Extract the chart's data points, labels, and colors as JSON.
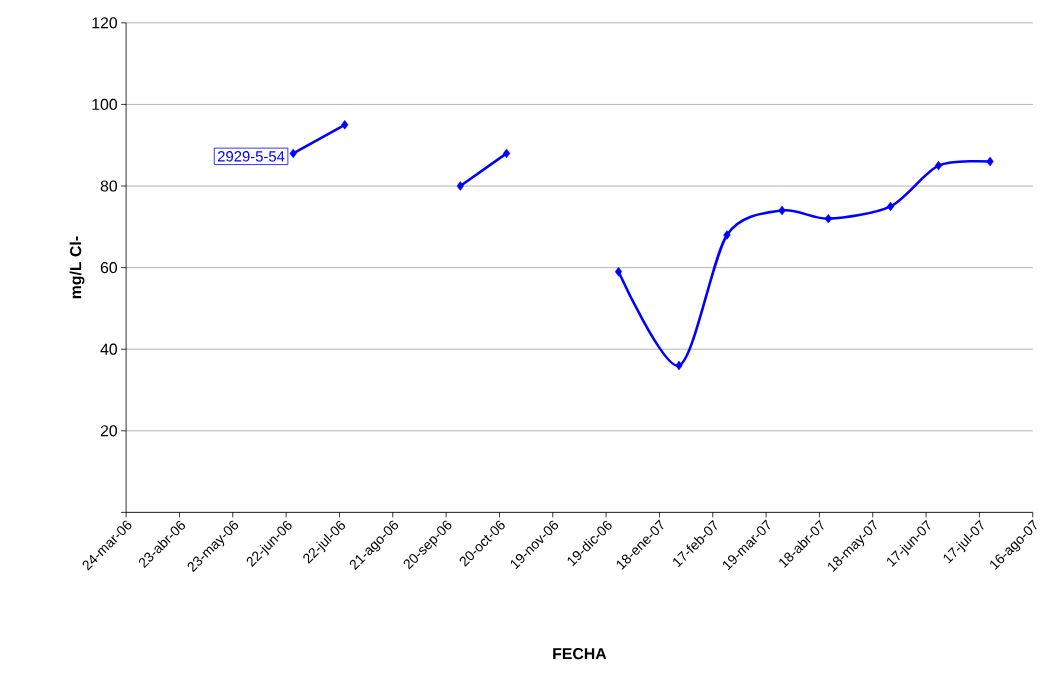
{
  "chart_data": {
    "type": "line",
    "xlabel": "FECHA",
    "ylabel": "mg/L Cl-",
    "series": [
      {
        "name": "2929-5-54",
        "color": "#0000ff",
        "x": [
          "2006-06-26",
          "2006-07-25"
        ],
        "values": [
          88,
          95
        ]
      },
      {
        "color": "#0000ff",
        "x": [
          "2006-09-28",
          "2006-10-24"
        ],
        "values": [
          80,
          88
        ]
      },
      {
        "color": "#0000ff",
        "x": [
          "2006-12-26",
          "2007-01-29",
          "2007-02-25",
          "2007-03-28",
          "2007-04-23",
          "2007-05-28",
          "2007-06-24",
          "2007-07-23"
        ],
        "values": [
          59,
          36,
          68,
          74,
          72,
          75,
          85,
          86
        ]
      }
    ],
    "xlim": [
      "2006-03-24",
      "2007-08-16"
    ],
    "xticks": [
      {
        "value": "2006-03-24",
        "label": "24-mar-06"
      },
      {
        "value": "2006-04-23",
        "label": "23-abr-06"
      },
      {
        "value": "2006-05-23",
        "label": "23-may-06"
      },
      {
        "value": "2006-06-22",
        "label": "22-jun-06"
      },
      {
        "value": "2006-07-22",
        "label": "22-jul-06"
      },
      {
        "value": "2006-08-21",
        "label": "21-ago-06"
      },
      {
        "value": "2006-09-20",
        "label": "20-sep-06"
      },
      {
        "value": "2006-10-20",
        "label": "20-oct-06"
      },
      {
        "value": "2006-11-19",
        "label": "19-nov-06"
      },
      {
        "value": "2006-12-19",
        "label": "19-dic-06"
      },
      {
        "value": "2007-01-18",
        "label": "18-ene-07"
      },
      {
        "value": "2007-02-17",
        "label": "17-feb-07"
      },
      {
        "value": "2007-03-19",
        "label": "19-mar-07"
      },
      {
        "value": "2007-04-18",
        "label": "18-abr-07"
      },
      {
        "value": "2007-05-18",
        "label": "18-may-07"
      },
      {
        "value": "2007-06-17",
        "label": "17-jun-07"
      },
      {
        "value": "2007-07-17",
        "label": "17-jul-07"
      },
      {
        "value": "2007-08-16",
        "label": "16-ago-07"
      }
    ],
    "ylim": [
      0,
      120
    ],
    "yticks": [
      {
        "value": 0,
        "label": null
      },
      20,
      40,
      60,
      80,
      100,
      120
    ],
    "grid": "y",
    "legend": false,
    "marker": "diamond",
    "line_style": "solid"
  }
}
